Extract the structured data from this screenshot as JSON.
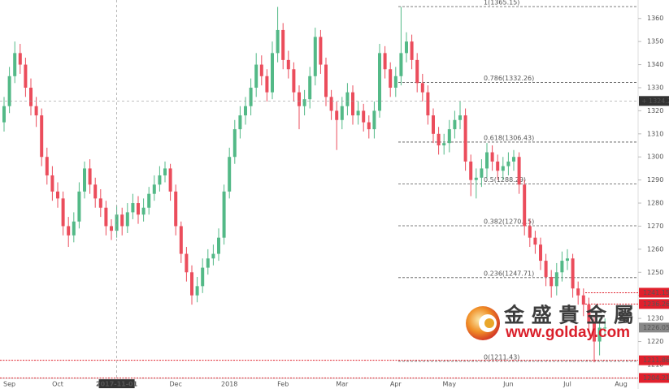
{
  "chart_data": {
    "type": "candlestick",
    "categories": [
      null,
      "Sep",
      null,
      null,
      null,
      null,
      null,
      null,
      null,
      null,
      "Oct",
      null,
      null,
      null,
      null,
      null,
      null,
      null,
      null,
      null,
      null,
      "2017-11-01",
      null,
      null,
      null,
      null,
      null,
      null,
      null,
      null,
      null,
      null,
      "Dec",
      null,
      null,
      null,
      null,
      null,
      null,
      null,
      null,
      null,
      "2018",
      null,
      null,
      null,
      null,
      null,
      null,
      null,
      null,
      null,
      "Feb",
      null,
      null,
      null,
      null,
      null,
      null,
      null,
      null,
      null,
      null,
      "Mar",
      null,
      null,
      null,
      null,
      null,
      null,
      null,
      null,
      null,
      "Apr",
      null,
      null,
      null,
      null,
      null,
      null,
      null,
      null,
      null,
      "May",
      null,
      null,
      null,
      null,
      null,
      null,
      null,
      null,
      null,
      null,
      "Jun",
      null,
      null,
      null,
      null,
      null,
      null,
      null,
      null,
      null,
      null,
      "Jul",
      null,
      null,
      null,
      null,
      null,
      null,
      null,
      null,
      null,
      "Aug",
      null,
      null
    ],
    "open": [
      1315,
      1322,
      1335,
      1345,
      1340,
      1330,
      1322,
      1318,
      1300,
      1292,
      1285,
      1282,
      1270,
      1266,
      1272,
      1285,
      1295,
      1288,
      1282,
      1278,
      1270,
      1268,
      1275,
      1270,
      1276,
      1280,
      1275,
      1278,
      1284,
      1288,
      1292,
      1295,
      1285,
      1270,
      1258,
      1250,
      1240,
      1244,
      1252,
      1256,
      1258,
      1265,
      1285,
      1300,
      1312,
      1318,
      1322,
      1330,
      1340,
      1335,
      1328,
      1345,
      1355,
      1342,
      1338,
      1328,
      1322,
      1325,
      1335,
      1352,
      1340,
      1326,
      1320,
      1316,
      1322,
      1328,
      1318,
      1320,
      1315,
      1312,
      1320,
      1345,
      1338,
      1330,
      1335,
      1345,
      1350,
      1342,
      1332,
      1328,
      1318,
      1310,
      1305,
      1306,
      1312,
      1316,
      1318,
      1298,
      1290,
      1291,
      1295,
      1302,
      1298,
      1294,
      1296,
      1298,
      1300,
      1288,
      1270,
      1265,
      1262,
      1255,
      1248,
      1244,
      1250,
      1255,
      1256,
      1243,
      1240,
      1236,
      1228,
      1220,
      1226,
      null,
      null,
      null,
      null,
      null
    ],
    "high": [
      1326,
      1339,
      1350,
      1349,
      1343,
      1334,
      1326,
      1321,
      1304,
      1296,
      1289,
      1285,
      1274,
      1276,
      1289,
      1298,
      1299,
      1291,
      1286,
      1281,
      1273,
      1279,
      1278,
      1280,
      1284,
      1283,
      1282,
      1287,
      1292,
      1296,
      1298,
      1297,
      1288,
      1272,
      1261,
      1253,
      1248,
      1256,
      1260,
      1262,
      1269,
      1288,
      1304,
      1316,
      1322,
      1326,
      1334,
      1345,
      1344,
      1338,
      1350,
      1365,
      1358,
      1346,
      1341,
      1331,
      1329,
      1339,
      1356,
      1355,
      1343,
      1329,
      1324,
      1326,
      1332,
      1331,
      1324,
      1323,
      1318,
      1324,
      1349,
      1348,
      1341,
      1339,
      1365,
      1354,
      1353,
      1345,
      1336,
      1331,
      1321,
      1313,
      1310,
      1316,
      1320,
      1324,
      1321,
      1301,
      1295,
      1299,
      1306,
      1305,
      1301,
      1300,
      1302,
      1303,
      1302,
      1290,
      1273,
      1268,
      1265,
      1258,
      1251,
      1254,
      1259,
      1260,
      1258,
      1246,
      1243,
      1239,
      1231,
      1230,
      1230,
      null,
      null,
      null,
      null,
      null
    ],
    "low": [
      1311,
      1319,
      1332,
      1336,
      1326,
      1318,
      1313,
      1296,
      1288,
      1281,
      1278,
      1266,
      1261,
      1263,
      1269,
      1282,
      1284,
      1278,
      1274,
      1266,
      1264,
      1265,
      1266,
      1267,
      1273,
      1271,
      1272,
      1275,
      1281,
      1285,
      1289,
      1281,
      1266,
      1254,
      1246,
      1236,
      1237,
      1241,
      1249,
      1253,
      1255,
      1262,
      1282,
      1297,
      1308,
      1314,
      1318,
      1326,
      1331,
      1324,
      1325,
      1341,
      1338,
      1334,
      1324,
      1312,
      1318,
      1321,
      1331,
      1336,
      1322,
      1316,
      1303,
      1312,
      1318,
      1314,
      1314,
      1311,
      1308,
      1308,
      1317,
      1334,
      1326,
      1326,
      1331,
      1341,
      1338,
      1328,
      1324,
      1314,
      1306,
      1301,
      1301,
      1302,
      1308,
      1312,
      1294,
      1283,
      1282,
      1287,
      1291,
      1294,
      1290,
      1290,
      1292,
      1294,
      1284,
      1266,
      1261,
      1258,
      1251,
      1244,
      1239,
      1240,
      1246,
      1251,
      1239,
      1236,
      1231,
      1224,
      1211,
      1214,
      1222,
      null,
      null,
      null,
      null,
      null
    ],
    "close": [
      1322,
      1335,
      1345,
      1340,
      1330,
      1322,
      1318,
      1300,
      1292,
      1285,
      1282,
      1270,
      1266,
      1272,
      1285,
      1295,
      1288,
      1282,
      1278,
      1270,
      1268,
      1275,
      1270,
      1276,
      1280,
      1275,
      1278,
      1284,
      1288,
      1292,
      1295,
      1285,
      1270,
      1258,
      1250,
      1240,
      1244,
      1252,
      1256,
      1258,
      1265,
      1285,
      1300,
      1312,
      1318,
      1322,
      1330,
      1340,
      1335,
      1328,
      1345,
      1355,
      1342,
      1338,
      1328,
      1322,
      1325,
      1335,
      1352,
      1340,
      1326,
      1320,
      1316,
      1322,
      1328,
      1318,
      1320,
      1315,
      1312,
      1320,
      1345,
      1338,
      1330,
      1335,
      1345,
      1350,
      1342,
      1332,
      1328,
      1318,
      1310,
      1305,
      1306,
      1312,
      1316,
      1318,
      1298,
      1290,
      1291,
      1295,
      1302,
      1298,
      1294,
      1296,
      1298,
      1300,
      1288,
      1270,
      1265,
      1262,
      1255,
      1248,
      1244,
      1250,
      1255,
      1256,
      1243,
      1240,
      1236,
      1228,
      1220,
      1226,
      1226.05,
      null,
      null,
      null,
      null,
      null
    ],
    "up_color": "#53b987",
    "down_color": "#eb4d5c",
    "ylim": [
      1204,
      1368
    ],
    "yticks": [
      1210,
      1220,
      1230,
      1240,
      1250,
      1260,
      1270,
      1280,
      1290,
      1300,
      1310,
      1320,
      1330,
      1340,
      1350,
      1360
    ],
    "fib_levels": [
      {
        "value": 1365.15,
        "label": "1(1365.15)"
      },
      {
        "value": 1332.26,
        "label": "0.786(1332.26)"
      },
      {
        "value": 1306.43,
        "label": "0.618(1306.43)"
      },
      {
        "value": 1288.29,
        "label": "0.5(1288.29)"
      },
      {
        "value": 1270.15,
        "label": "0.382(1270.15)"
      },
      {
        "value": 1247.71,
        "label": "0.236(1247.71)"
      },
      {
        "value": 1211.43,
        "label": "0(1211.43)"
      }
    ],
    "price_lines": [
      1241.15,
      1236.26,
      1211.86,
      1204.21
    ],
    "price_line_color": "#e0202c",
    "current_price": 1226.05,
    "crosshair": {
      "x": "2017-11-01",
      "y": 1324.25
    },
    "watermark": {
      "title": "金 盛 貴 金 屬",
      "url": "www.golday.com"
    }
  }
}
